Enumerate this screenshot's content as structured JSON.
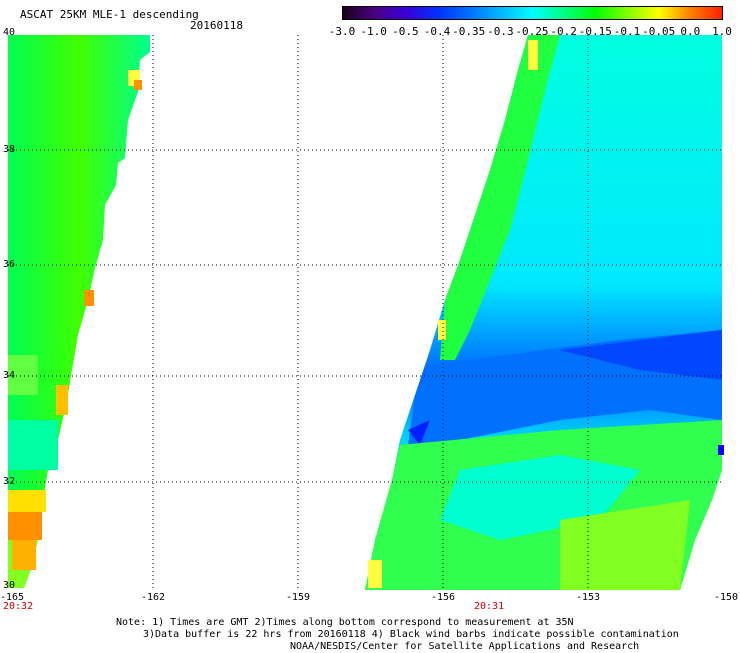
{
  "header": {
    "title": "ASCAT 25KM MLE-1 descending",
    "date": "20160118"
  },
  "colorbar": {
    "labels": [
      "-3.0",
      "-1.0",
      "-0.5",
      "-0.4",
      "-0.35",
      "-0.3",
      "-0.25",
      "-0.2",
      "-0.15",
      "-0.1",
      "-0.05",
      "0.0",
      "1.0"
    ],
    "colors": [
      "#1a001a",
      "#4a0080",
      "#3a00d8",
      "#0030ff",
      "#0070ff",
      "#00b8ff",
      "#00ffff",
      "#00ff80",
      "#00ff00",
      "#80ff00",
      "#ffff00",
      "#ff8000",
      "#ff2000"
    ]
  },
  "axes": {
    "lat_labels": [
      "40",
      "38",
      "36",
      "34",
      "32",
      "30"
    ],
    "lon_labels": [
      "-165",
      "-162",
      "-159",
      "-156",
      "-153",
      "-150"
    ],
    "grid": true
  },
  "times": {
    "left": "20:32",
    "right": "20:31"
  },
  "note": {
    "line1": "Note: 1) Times are GMT 2)Times along bottom correspond to measurement at 35N",
    "line2": "3)Data buffer is 22 hrs from 20160118 4) Black wind barbs indicate possible contamination",
    "line3": "NOAA/NESDIS/Center for Satellite Applications and Research"
  },
  "swaths": {
    "left_pass": "green dominant with yellow/orange patches near west edge",
    "right_pass": "green northwest edge, cyan interior, blue band near 34N, green/yellow south"
  }
}
